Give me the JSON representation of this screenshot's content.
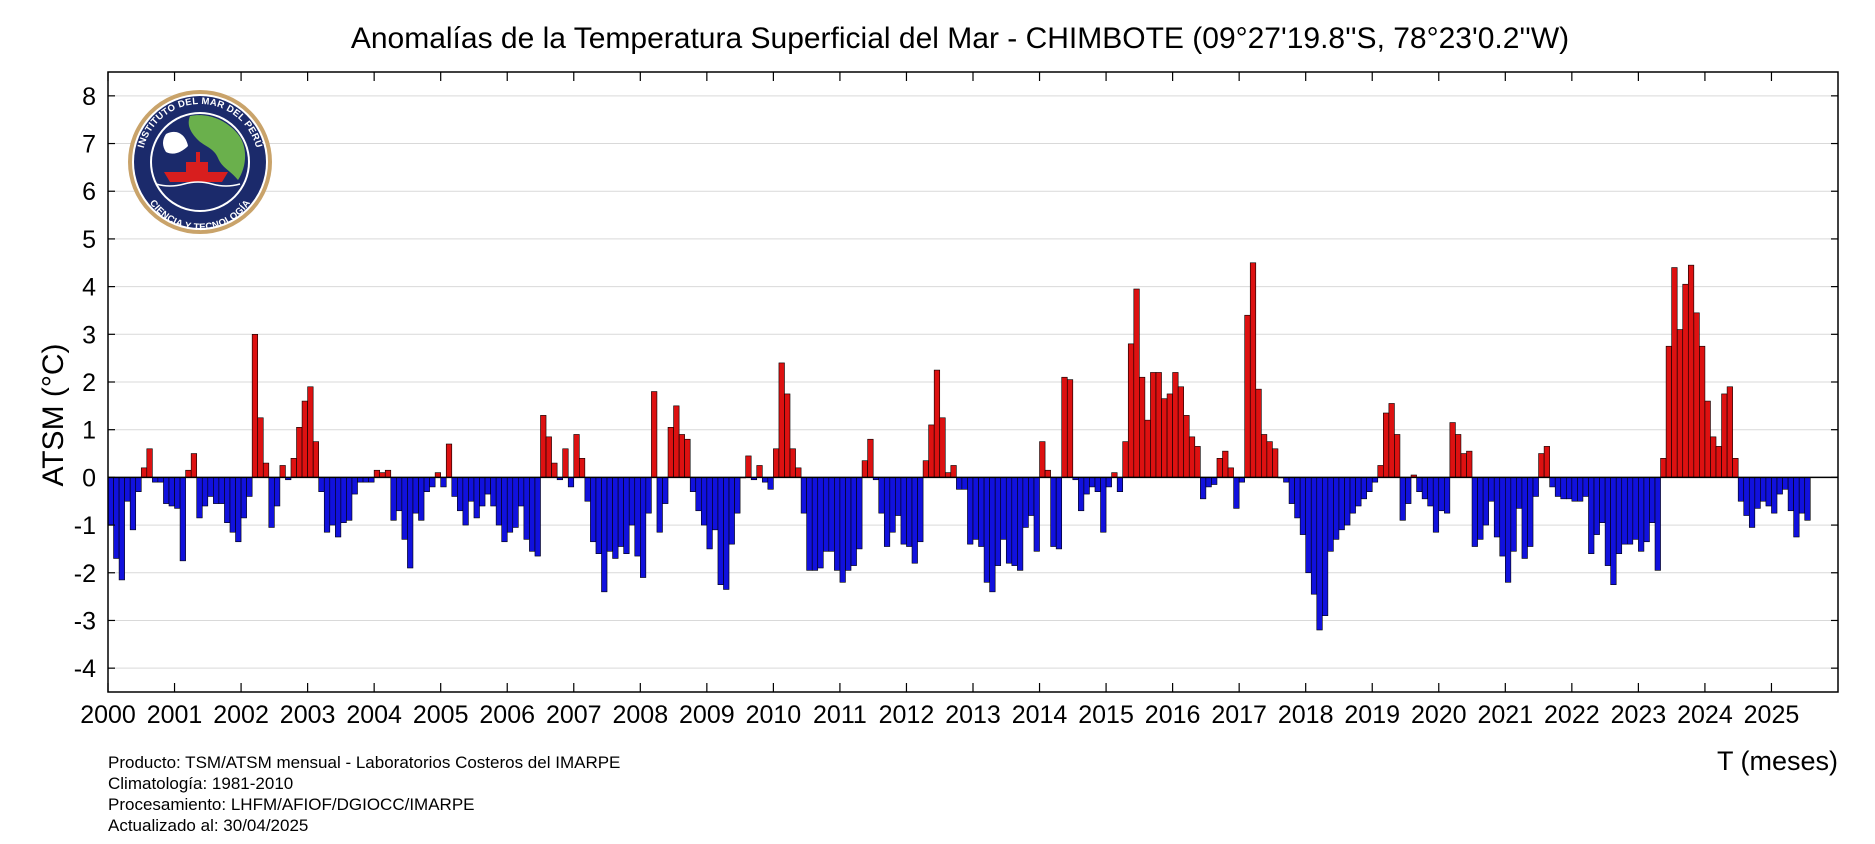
{
  "chart_data": {
    "type": "bar",
    "title": "Anomalías de la Temperatura Superficial del Mar - CHIMBOTE (09°27'19.8''S, 78°23'0.2''W)",
    "ylabel": "ATSM (°C)",
    "xlabel": "T (meses)",
    "ylim": [
      -4.5,
      8.5
    ],
    "yticks": [
      -4,
      -3,
      -2,
      -1,
      0,
      1,
      2,
      3,
      4,
      5,
      6,
      7,
      8
    ],
    "xlim": [
      2000.0,
      2026.0
    ],
    "xticks": [
      "2000",
      "2001",
      "2002",
      "2003",
      "2004",
      "2005",
      "2006",
      "2007",
      "2008",
      "2009",
      "2010",
      "2011",
      "2012",
      "2013",
      "2014",
      "2015",
      "2016",
      "2017",
      "2018",
      "2019",
      "2020",
      "2021",
      "2022",
      "2023",
      "2024",
      "2025"
    ],
    "grid": "horizontal",
    "start_month": "2000-01",
    "positive_color": "#dd1111",
    "negative_color": "#1111dd",
    "values": [
      -1.0,
      -1.7,
      -2.15,
      -0.5,
      -1.1,
      -0.3,
      0.2,
      0.6,
      -0.1,
      -0.1,
      -0.55,
      -0.6,
      -0.65,
      -1.75,
      0.15,
      0.5,
      -0.85,
      -0.6,
      -0.4,
      -0.55,
      -0.55,
      -0.95,
      -1.15,
      -1.35,
      -0.85,
      -0.4,
      3.0,
      1.25,
      0.3,
      -1.05,
      -0.6,
      0.25,
      -0.05,
      0.4,
      1.05,
      1.6,
      1.9,
      0.75,
      -0.3,
      -1.15,
      -1.0,
      -1.25,
      -0.95,
      -0.9,
      -0.35,
      -0.1,
      -0.1,
      -0.1,
      0.15,
      0.1,
      0.15,
      -0.9,
      -0.7,
      -1.3,
      -1.9,
      -0.75,
      -0.9,
      -0.3,
      -0.2,
      0.1,
      -0.2,
      0.7,
      -0.4,
      -0.7,
      -1.0,
      -0.5,
      -0.85,
      -0.6,
      -0.35,
      -0.6,
      -1.0,
      -1.35,
      -1.15,
      -1.05,
      -0.6,
      -1.3,
      -1.55,
      -1.65,
      1.3,
      0.85,
      0.3,
      -0.05,
      0.6,
      -0.2,
      0.9,
      0.4,
      -0.5,
      -1.35,
      -1.6,
      -2.4,
      -1.55,
      -1.7,
      -1.45,
      -1.6,
      -1.0,
      -1.65,
      -2.1,
      -0.75,
      1.8,
      -1.15,
      -0.55,
      1.05,
      1.5,
      0.9,
      0.8,
      -0.3,
      -0.7,
      -1.0,
      -1.5,
      -1.1,
      -2.25,
      -2.35,
      -1.4,
      -0.75,
      0.0,
      0.45,
      -0.05,
      0.25,
      -0.1,
      -0.25,
      0.6,
      2.4,
      1.75,
      0.6,
      0.2,
      -0.75,
      -1.95,
      -1.95,
      -1.9,
      -1.55,
      -1.55,
      -1.95,
      -2.2,
      -1.95,
      -1.85,
      -1.5,
      0.35,
      0.8,
      -0.05,
      -0.75,
      -1.45,
      -1.15,
      -0.8,
      -1.4,
      -1.45,
      -1.8,
      -1.35,
      0.35,
      1.1,
      2.25,
      1.25,
      0.1,
      0.25,
      -0.25,
      -0.25,
      -1.4,
      -1.3,
      -1.45,
      -2.2,
      -2.4,
      -1.85,
      -1.3,
      -1.8,
      -1.85,
      -1.95,
      -1.05,
      -0.8,
      -1.55,
      0.75,
      0.15,
      -1.45,
      -1.5,
      2.1,
      2.05,
      -0.05,
      -0.7,
      -0.35,
      -0.2,
      -0.3,
      -1.15,
      -0.2,
      0.1,
      -0.3,
      0.75,
      2.8,
      3.95,
      2.1,
      1.2,
      2.2,
      2.2,
      1.65,
      1.75,
      2.2,
      1.9,
      1.3,
      0.85,
      0.65,
      -0.45,
      -0.2,
      -0.15,
      0.4,
      0.55,
      0.2,
      -0.65,
      -0.1,
      3.4,
      4.5,
      1.85,
      0.9,
      0.75,
      0.6,
      0.0,
      -0.1,
      -0.55,
      -0.85,
      -1.2,
      -2.0,
      -2.45,
      -3.2,
      -2.9,
      -1.55,
      -1.3,
      -1.1,
      -1.0,
      -0.75,
      -0.6,
      -0.45,
      -0.3,
      -0.1,
      0.25,
      1.35,
      1.55,
      0.9,
      -0.9,
      -0.55,
      0.05,
      -0.3,
      -0.45,
      -0.6,
      -1.15,
      -0.7,
      -0.75,
      1.15,
      0.9,
      0.5,
      0.55,
      -1.45,
      -1.3,
      -1.0,
      -0.5,
      -1.25,
      -1.65,
      -2.2,
      -1.55,
      -0.65,
      -1.7,
      -1.45,
      -0.4,
      0.5,
      0.65,
      -0.2,
      -0.4,
      -0.45,
      -0.45,
      -0.5,
      -0.5,
      -0.4,
      -1.6,
      -1.2,
      -0.95,
      -1.85,
      -2.25,
      -1.6,
      -1.4,
      -1.4,
      -1.3,
      -1.55,
      -1.35,
      -0.95,
      -1.95,
      0.4,
      2.75,
      4.4,
      3.1,
      4.05,
      4.45,
      3.45,
      2.75,
      1.6,
      0.85,
      0.65,
      1.75,
      1.9,
      0.4,
      -0.5,
      -0.8,
      -1.05,
      -0.65,
      -0.5,
      -0.6,
      -0.75,
      -0.35,
      -0.25,
      -0.7,
      -1.25,
      -0.75,
      -0.9
    ]
  },
  "footer": {
    "line1": "Producto: TSM/ATSM mensual - Laboratorios Costeros del IMARPE",
    "line2": "Climatología: 1981-2010",
    "line3": "Procesamiento: LHFM/AFIOF/DGIOCC/IMARPE",
    "line4": "Actualizado al: 30/04/2025"
  },
  "logo": {
    "name": "imarpe-logo",
    "top_text": "INSTITUTO DEL MAR DEL PERÚ",
    "bottom_text": "CIENCIA Y TECNOLOGÍA",
    "colors": {
      "ring": "#c9a36a",
      "ocean": "#1b2a6b",
      "land": "#6ab04c",
      "ship": "#d81e1e"
    }
  }
}
